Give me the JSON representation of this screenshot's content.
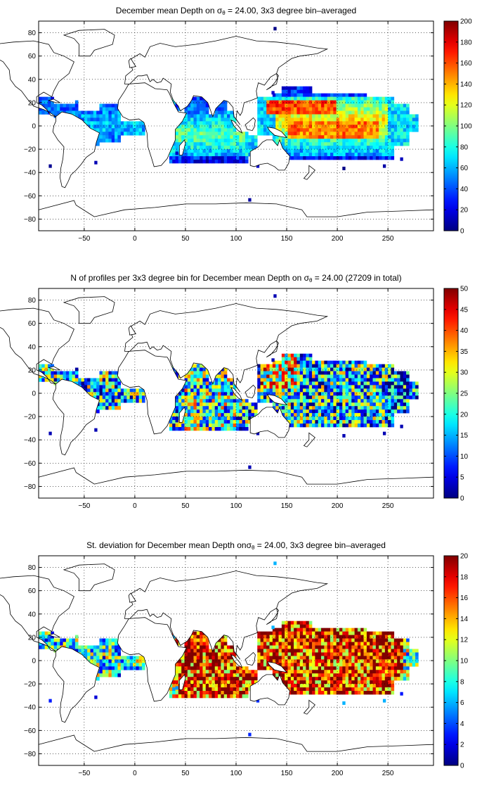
{
  "panels": [
    {
      "title_pre": "December mean Depth on ",
      "title_sym": "σ",
      "title_sub": "θ",
      "title_post": " = 24.00, 3x3 degree bin–averaged",
      "colorbar": {
        "min": 0,
        "max": 200,
        "ticks": [
          "0",
          "20",
          "40",
          "60",
          "80",
          "100",
          "120",
          "140",
          "160",
          "180",
          "200"
        ]
      },
      "field": "depth"
    },
    {
      "title_pre": "N of profiles per 3x3 degree bin for December mean Depth on ",
      "title_sym": "σ",
      "title_sub": "θ",
      "title_post": " = 24.00 (27209 in total)",
      "colorbar": {
        "min": 0,
        "max": 50,
        "ticks": [
          "0",
          "5",
          "10",
          "15",
          "20",
          "25",
          "30",
          "35",
          "40",
          "45",
          "50"
        ]
      },
      "field": "count"
    },
    {
      "title_pre": "St. deviation for December mean Depth on",
      "title_sym": "σ",
      "title_sub": "θ",
      "title_post": " = 24.00, 3x3 degree bin–averaged",
      "colorbar": {
        "min": 0,
        "max": 20,
        "ticks": [
          "0",
          "2",
          "4",
          "6",
          "8",
          "10",
          "12",
          "14",
          "16",
          "18",
          "20"
        ]
      },
      "field": "std"
    }
  ],
  "map": {
    "xticks": [
      "-50",
      "0",
      "50",
      "100",
      "150",
      "200",
      "250"
    ],
    "yticks": [
      "80",
      "60",
      "40",
      "20",
      "0",
      "-20",
      "-40",
      "-60",
      "-80"
    ],
    "colormap": "jet",
    "grid": "dotted"
  }
}
